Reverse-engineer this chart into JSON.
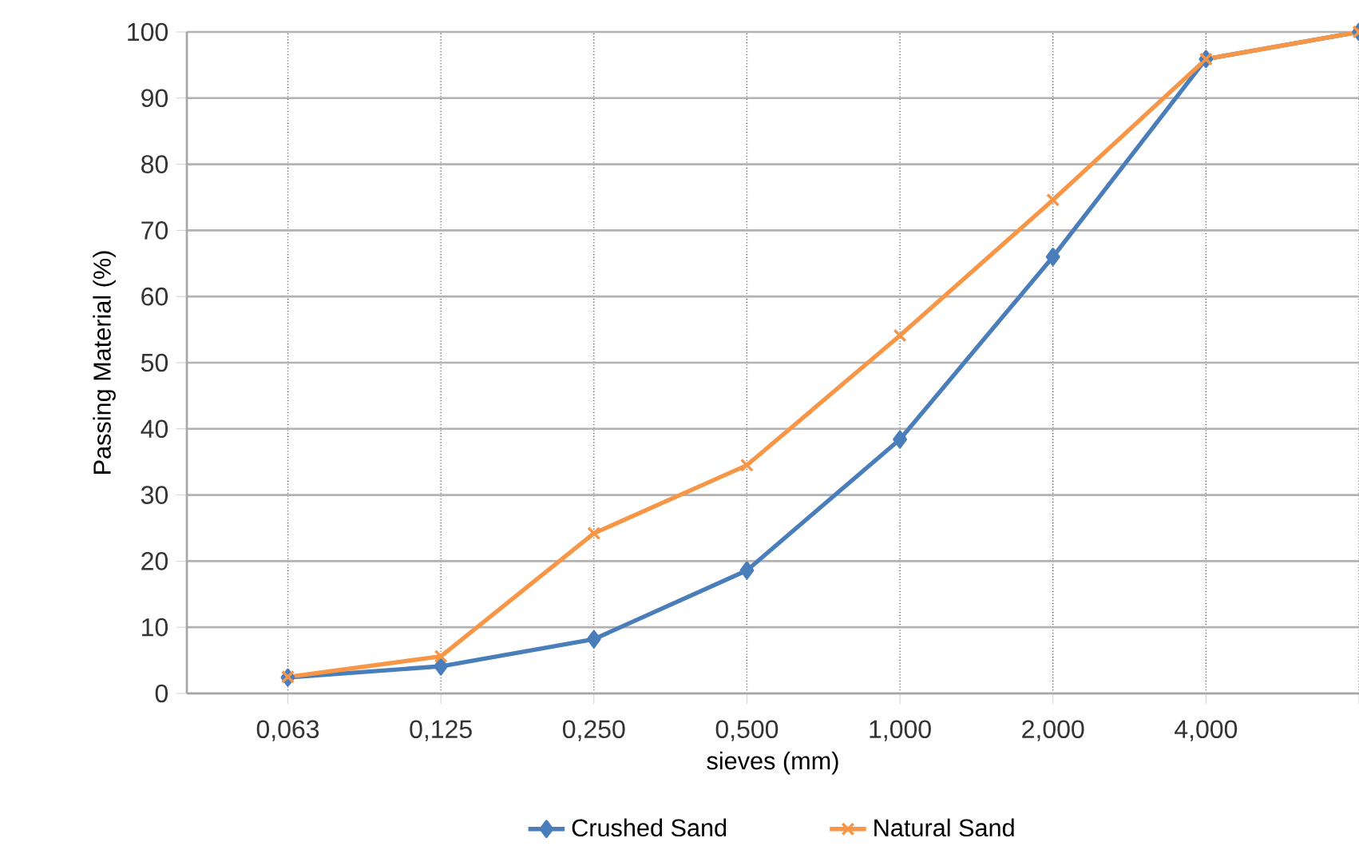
{
  "chart_data": {
    "type": "line",
    "xlabel": "sieves (mm)",
    "ylabel": "Passing Material (%)",
    "categories": [
      "0,063",
      "0,125",
      "0,250",
      "0,500",
      "1,000",
      "2,000",
      "4,000",
      null
    ],
    "series": [
      {
        "name": "Crushed Sand",
        "color": "#4a7ebb",
        "marker": "diamond",
        "values": [
          2.4,
          4.1,
          8.2,
          18.6,
          38.4,
          66,
          95.9,
          100
        ]
      },
      {
        "name": "Natural Sand",
        "color": "#f79646",
        "marker": "cross",
        "values": [
          2.5,
          5.6,
          24.2,
          34.5,
          54.1,
          74.6,
          95.9,
          100
        ]
      }
    ],
    "ylim": [
      0,
      100
    ],
    "yticks": [
      0,
      10,
      20,
      30,
      40,
      50,
      60,
      70,
      80,
      90,
      100
    ],
    "grid": true,
    "legend": "bottom",
    "line_style": "solid"
  }
}
